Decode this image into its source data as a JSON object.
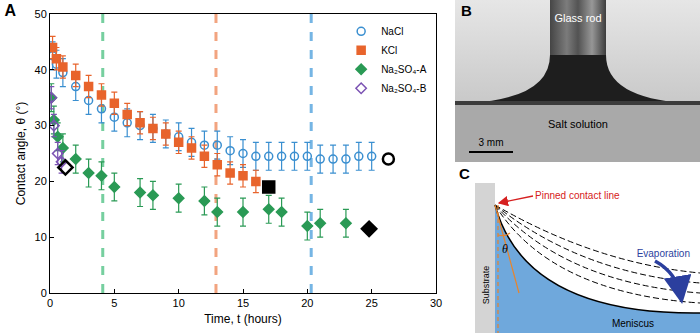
{
  "chart_data": {
    "type": "scatter",
    "title": "A",
    "x_label": "Time, t (hours)",
    "y_label": "Contact angle, θ (°)",
    "xlim": [
      0,
      30
    ],
    "xticks": [
      0,
      5,
      10,
      15,
      20,
      25,
      30
    ],
    "ylim": [
      0,
      50
    ],
    "yticks": [
      0,
      10,
      20,
      30,
      40,
      50
    ],
    "grid": false,
    "legend": "top-right",
    "series": [
      {
        "name": "NaCl",
        "color": "#3a8fd0",
        "marker": "circle-open",
        "x": [
          0.2,
          0.5,
          1,
          2,
          3,
          4,
          5,
          6,
          7,
          8,
          9,
          10,
          11,
          12,
          13,
          14,
          15,
          16,
          17,
          18,
          19,
          20,
          21,
          22,
          23,
          24,
          25
        ],
        "values": [
          42.5,
          41,
          39.5,
          37,
          34.5,
          33,
          31.5,
          30.5,
          30,
          29.5,
          28.5,
          28,
          27,
          26.5,
          26.5,
          25.5,
          25,
          24.5,
          24.5,
          24.5,
          24.5,
          24.5,
          24,
          24,
          24,
          24.5,
          24.5
        ],
        "errors": [
          2.5,
          2.5,
          2.5,
          2.5,
          2.5,
          2.5,
          2.5,
          2.5,
          2.5,
          2.5,
          2.5,
          2.5,
          2.5,
          2.5,
          2.5,
          2.5,
          2.5,
          2.5,
          2.5,
          2.5,
          2.5,
          2.5,
          2.5,
          2.5,
          2.5,
          2.5,
          2.5
        ],
        "end": {
          "x": 26.3,
          "value": 24
        }
      },
      {
        "name": "KCl",
        "color": "#e8642c",
        "marker": "square",
        "x": [
          0.2,
          0.5,
          1,
          2,
          3,
          4,
          5,
          6,
          7,
          8,
          9,
          10,
          11,
          12,
          13,
          14,
          15,
          16
        ],
        "values": [
          44,
          42,
          40.5,
          39,
          37,
          35.5,
          34,
          32,
          30.5,
          29.5,
          28.5,
          27,
          26,
          24.5,
          23,
          21.5,
          21,
          20
        ],
        "errors": [
          2,
          2,
          2,
          2,
          2,
          2,
          2,
          2,
          2,
          2,
          2,
          2,
          2,
          2,
          2,
          2,
          2,
          2
        ],
        "end": {
          "x": 17,
          "value": 19
        }
      },
      {
        "name": "Na₂SO₄-A",
        "color": "#2a9a55",
        "marker": "diamond",
        "x": [
          0.1,
          0.3,
          0.6,
          1,
          2,
          3,
          4,
          5,
          7,
          8,
          10,
          12,
          13,
          15,
          17,
          18,
          20,
          21,
          23
        ],
        "values": [
          35,
          31,
          28,
          26,
          24,
          21.5,
          21,
          19,
          18,
          17.5,
          17,
          16.5,
          14.5,
          14.5,
          15,
          14.5,
          12,
          12.5,
          12.5
        ],
        "errors": [
          2.5,
          2.5,
          2.5,
          2.5,
          2.5,
          2.5,
          2.5,
          2.5,
          2.5,
          2.5,
          2.5,
          2.5,
          2.5,
          2.5,
          2.5,
          2.5,
          2.5,
          2.5,
          2.5
        ],
        "end": {
          "x": 24.8,
          "value": 11.5
        }
      },
      {
        "name": "Na₂SO₄-B",
        "color": "#7b52b3",
        "marker": "diamond-open",
        "x": [
          0.1,
          0.3,
          0.6,
          0.9
        ],
        "values": [
          35,
          30,
          25,
          23.5
        ],
        "errors": [
          2,
          2,
          2,
          2
        ],
        "end": {
          "x": 1.2,
          "value": 22.5
        }
      }
    ],
    "vertical_lines": [
      {
        "x": 4.1,
        "color": "#5fc78f"
      },
      {
        "x": 12.9,
        "color": "#f0956a"
      },
      {
        "x": 20.3,
        "color": "#5ea9e0"
      }
    ]
  },
  "panel_b": {
    "label": "B",
    "rod": "Glass rod",
    "solution": "Salt solution",
    "scale": "3 mm"
  },
  "panel_c": {
    "label": "C",
    "contact_line": "Pinned contact line",
    "substrate": "Substrate",
    "angle": "θ",
    "evaporation": "Evaporation",
    "meniscus": "Meniscus"
  }
}
